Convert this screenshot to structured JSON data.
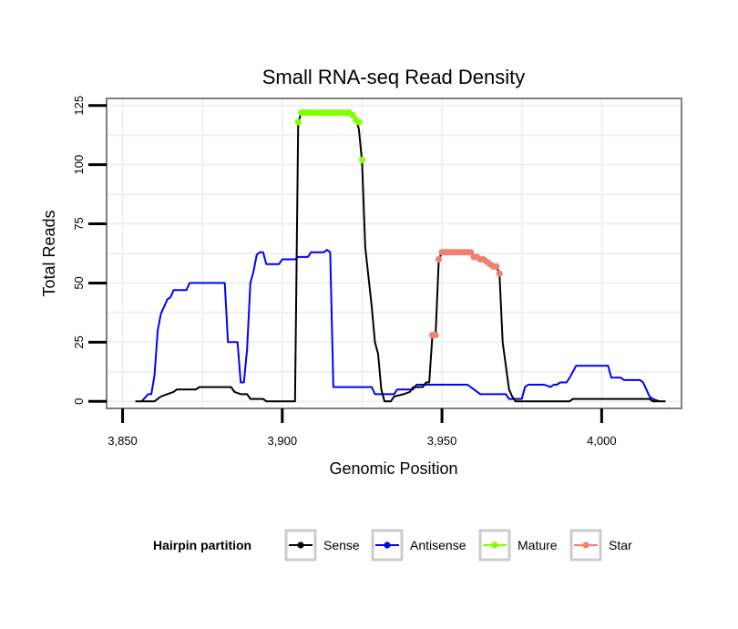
{
  "chart_data": {
    "type": "line",
    "title": "Small RNA-seq Read Density",
    "xlabel": "Genomic Position",
    "ylabel": "Total Reads",
    "xlim": [
      3845,
      4025
    ],
    "ylim": [
      -3,
      128
    ],
    "x_ticks": [
      3850,
      3900,
      3950,
      4000
    ],
    "x_tick_labels": [
      "3,850",
      "3,900",
      "3,950",
      "4,000"
    ],
    "y_ticks": [
      0,
      25,
      50,
      75,
      100,
      125
    ],
    "y_tick_labels": [
      "0",
      "25",
      "50",
      "75",
      "100",
      "125"
    ],
    "grid": true,
    "legend": {
      "title": "Hairpin partition",
      "position": "bottom",
      "entries": [
        "Sense",
        "Antisense",
        "Mature",
        "Star"
      ]
    },
    "colors": {
      "Sense": "#000000",
      "Antisense": "#0000ff",
      "Mature": "#7fff00",
      "Star": "#f08070",
      "panel_border": "#7f7f7f",
      "grid": "#f0f0f0"
    },
    "series": [
      {
        "name": "Sense",
        "type": "line",
        "points": [
          [
            3854,
            0
          ],
          [
            3860,
            0
          ],
          [
            3862,
            2
          ],
          [
            3864,
            3
          ],
          [
            3866,
            4
          ],
          [
            3867,
            5
          ],
          [
            3873,
            5
          ],
          [
            3874,
            6
          ],
          [
            3884,
            6
          ],
          [
            3885,
            4
          ],
          [
            3887,
            3
          ],
          [
            3889,
            3
          ],
          [
            3890,
            1
          ],
          [
            3894,
            1
          ],
          [
            3895,
            0
          ],
          [
            3904,
            0
          ],
          [
            3905,
            118
          ],
          [
            3906,
            122
          ],
          [
            3921,
            122
          ],
          [
            3923,
            120
          ],
          [
            3924,
            115
          ],
          [
            3925,
            101
          ],
          [
            3926,
            65
          ],
          [
            3928,
            40
          ],
          [
            3929,
            25
          ],
          [
            3930,
            20
          ],
          [
            3931,
            5
          ],
          [
            3932,
            0
          ],
          [
            3934,
            0
          ],
          [
            3935,
            2
          ],
          [
            3938,
            3
          ],
          [
            3940,
            4
          ],
          [
            3941,
            6
          ],
          [
            3944,
            6
          ],
          [
            3945,
            8
          ],
          [
            3946,
            8
          ],
          [
            3947,
            28
          ],
          [
            3948,
            28
          ],
          [
            3949,
            60
          ],
          [
            3950,
            63
          ],
          [
            3959,
            63
          ],
          [
            3961,
            61
          ],
          [
            3964,
            60
          ],
          [
            3966,
            58
          ],
          [
            3967,
            57
          ],
          [
            3968,
            54
          ],
          [
            3969,
            25
          ],
          [
            3970,
            15
          ],
          [
            3971,
            5
          ],
          [
            3972,
            2
          ],
          [
            3973,
            0
          ],
          [
            3990,
            0
          ],
          [
            3991,
            1
          ],
          [
            4015,
            1
          ],
          [
            4016,
            0
          ],
          [
            4020,
            0
          ]
        ]
      },
      {
        "name": "Antisense",
        "type": "line",
        "points": [
          [
            3856,
            0
          ],
          [
            3858,
            3
          ],
          [
            3859,
            3
          ],
          [
            3860,
            11
          ],
          [
            3861,
            30
          ],
          [
            3862,
            37
          ],
          [
            3863,
            40
          ],
          [
            3864,
            43
          ],
          [
            3865,
            44
          ],
          [
            3866,
            47
          ],
          [
            3870,
            47
          ],
          [
            3871,
            50
          ],
          [
            3882,
            50
          ],
          [
            3883,
            25
          ],
          [
            3886,
            25
          ],
          [
            3887,
            8
          ],
          [
            3888,
            8
          ],
          [
            3889,
            22
          ],
          [
            3890,
            50
          ],
          [
            3891,
            55
          ],
          [
            3892,
            62
          ],
          [
            3893,
            63
          ],
          [
            3894,
            63
          ],
          [
            3895,
            58
          ],
          [
            3899,
            58
          ],
          [
            3900,
            60
          ],
          [
            3904,
            60
          ],
          [
            3905,
            61
          ],
          [
            3908,
            61
          ],
          [
            3909,
            63
          ],
          [
            3913,
            63
          ],
          [
            3914,
            64
          ],
          [
            3915,
            63
          ],
          [
            3916,
            6
          ],
          [
            3928,
            6
          ],
          [
            3929,
            3
          ],
          [
            3935,
            3
          ],
          [
            3936,
            5
          ],
          [
            3941,
            5
          ],
          [
            3942,
            7
          ],
          [
            3958,
            7
          ],
          [
            3960,
            5
          ],
          [
            3962,
            3
          ],
          [
            3970,
            3
          ],
          [
            3971,
            1
          ],
          [
            3975,
            1
          ],
          [
            3976,
            6
          ],
          [
            3977,
            7
          ],
          [
            3982,
            7
          ],
          [
            3984,
            6
          ],
          [
            3985,
            7
          ],
          [
            3986,
            7
          ],
          [
            3987,
            8
          ],
          [
            3989,
            8
          ],
          [
            3990,
            10
          ],
          [
            3992,
            15
          ],
          [
            4002,
            15
          ],
          [
            4003,
            10
          ],
          [
            4006,
            10
          ],
          [
            4007,
            9
          ],
          [
            4012,
            9
          ],
          [
            4013,
            8
          ],
          [
            4014,
            5
          ],
          [
            4015,
            2
          ],
          [
            4016,
            1
          ],
          [
            4018,
            0
          ]
        ]
      },
      {
        "name": "Mature",
        "type": "scatter",
        "points": [
          [
            3905,
            118
          ],
          [
            3906,
            122
          ],
          [
            3907,
            122
          ],
          [
            3908,
            122
          ],
          [
            3909,
            122
          ],
          [
            3910,
            122
          ],
          [
            3911,
            122
          ],
          [
            3912,
            122
          ],
          [
            3913,
            122
          ],
          [
            3914,
            122
          ],
          [
            3915,
            122
          ],
          [
            3916,
            122
          ],
          [
            3917,
            122
          ],
          [
            3918,
            122
          ],
          [
            3919,
            122
          ],
          [
            3920,
            122
          ],
          [
            3921,
            122
          ],
          [
            3922,
            121
          ],
          [
            3923,
            119
          ],
          [
            3924,
            118
          ],
          [
            3925,
            102
          ]
        ]
      },
      {
        "name": "Star",
        "type": "scatter",
        "points": [
          [
            3947,
            28
          ],
          [
            3948,
            28
          ],
          [
            3949,
            60
          ],
          [
            3950,
            63
          ],
          [
            3951,
            63
          ],
          [
            3952,
            63
          ],
          [
            3953,
            63
          ],
          [
            3954,
            63
          ],
          [
            3955,
            63
          ],
          [
            3956,
            63
          ],
          [
            3957,
            63
          ],
          [
            3958,
            63
          ],
          [
            3959,
            63
          ],
          [
            3960,
            61
          ],
          [
            3961,
            61
          ],
          [
            3962,
            60
          ],
          [
            3963,
            60
          ],
          [
            3964,
            59
          ],
          [
            3965,
            58
          ],
          [
            3966,
            57
          ],
          [
            3967,
            57
          ],
          [
            3968,
            54
          ]
        ]
      }
    ]
  }
}
